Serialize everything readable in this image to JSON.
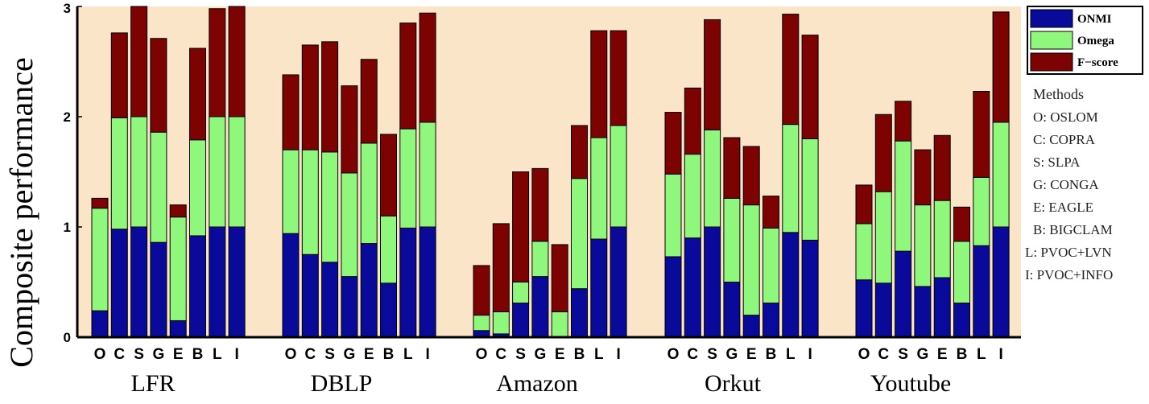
{
  "colors": {
    "plot_background": "#fbe5c8",
    "ONMI": "#0a0a9a",
    "Omega": "#8ff77b",
    "F-score": "#7d0202"
  },
  "chart_data": {
    "type": "bar",
    "stacked": true,
    "ylabel": "Composite performance",
    "ylim": [
      0,
      3
    ],
    "yticks": [
      "0",
      "1",
      "2",
      "3"
    ],
    "method_letters": [
      "O",
      "C",
      "S",
      "G",
      "E",
      "B",
      "L",
      "I"
    ],
    "legend": [
      "ONMI",
      "Omega",
      "F−score"
    ],
    "series_names": [
      "ONMI",
      "Omega",
      "F-score"
    ],
    "groups": [
      {
        "name": "LFR",
        "bars": [
          [
            0.24,
            0.93,
            0.09
          ],
          [
            0.98,
            1.01,
            0.77
          ],
          [
            1.0,
            1.0,
            1.0
          ],
          [
            0.86,
            1.0,
            0.85
          ],
          [
            0.15,
            0.94,
            0.11
          ],
          [
            0.92,
            0.87,
            0.83
          ],
          [
            1.0,
            1.0,
            0.98
          ],
          [
            1.0,
            1.0,
            1.0
          ]
        ]
      },
      {
        "name": "DBLP",
        "bars": [
          [
            0.94,
            0.76,
            0.68
          ],
          [
            0.75,
            0.95,
            0.95
          ],
          [
            0.68,
            1.0,
            1.0
          ],
          [
            0.55,
            0.94,
            0.79
          ],
          [
            0.85,
            0.91,
            0.76
          ],
          [
            0.49,
            0.61,
            0.74
          ],
          [
            0.99,
            0.9,
            0.96
          ],
          [
            1.0,
            0.95,
            0.99
          ]
        ]
      },
      {
        "name": "Amazon",
        "bars": [
          [
            0.06,
            0.14,
            0.45
          ],
          [
            0.03,
            0.2,
            0.8
          ],
          [
            0.31,
            0.19,
            1.0
          ],
          [
            0.55,
            0.32,
            0.66
          ],
          [
            0.0,
            0.23,
            0.61
          ],
          [
            0.44,
            1.0,
            0.48
          ],
          [
            0.89,
            0.92,
            0.97
          ],
          [
            1.0,
            0.92,
            0.86
          ]
        ]
      },
      {
        "name": "Orkut",
        "bars": [
          [
            0.73,
            0.75,
            0.56
          ],
          [
            0.9,
            0.76,
            0.6
          ],
          [
            1.0,
            0.88,
            1.0
          ],
          [
            0.5,
            0.76,
            0.55
          ],
          [
            0.2,
            1.0,
            0.53
          ],
          [
            0.31,
            0.68,
            0.29
          ],
          [
            0.95,
            0.98,
            1.0
          ],
          [
            0.88,
            0.92,
            0.94
          ]
        ]
      },
      {
        "name": "Youtube",
        "bars": [
          [
            0.52,
            0.51,
            0.35
          ],
          [
            0.49,
            0.83,
            0.7
          ],
          [
            0.78,
            1.0,
            0.36
          ],
          [
            0.46,
            0.74,
            0.5
          ],
          [
            0.54,
            0.7,
            0.59
          ],
          [
            0.31,
            0.56,
            0.31
          ],
          [
            0.83,
            0.62,
            0.78
          ],
          [
            1.0,
            0.95,
            1.0
          ]
        ]
      }
    ]
  },
  "methods_panel": {
    "title": "Methods",
    "items": [
      "O: OSLOM",
      "C: COPRA",
      "S: SLPA",
      "G: CONGA",
      "E: EAGLE",
      "B: BIGCLAM",
      "L: PVOC+LVN",
      "I: PVOC+INFO"
    ]
  }
}
